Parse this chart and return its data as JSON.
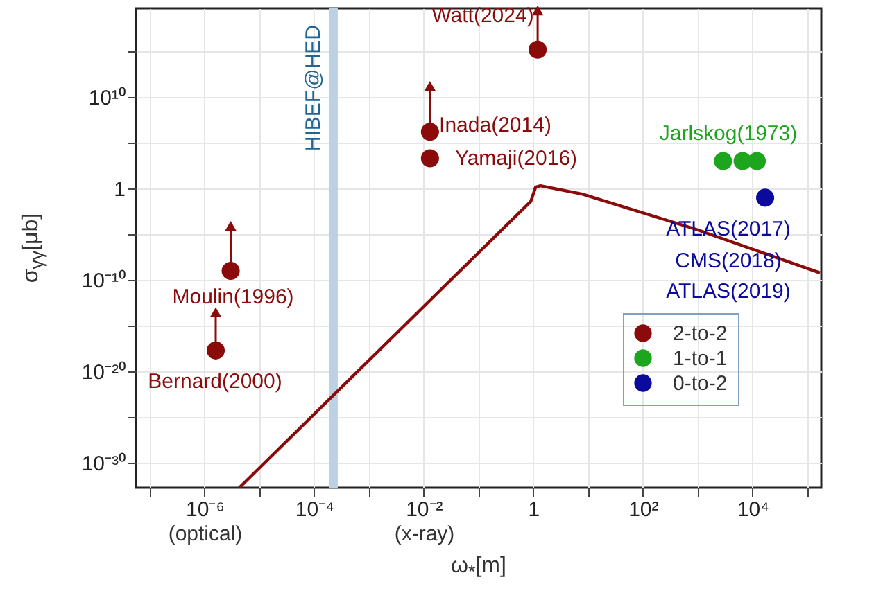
{
  "chart_data": {
    "type": "scatter",
    "xlabel": "ω$_{*}$[m]",
    "ylabel": "σ$_{γγ}$[μb]",
    "xlim": [
      5.6e-08,
      180000.0
    ],
    "ylim": [
      2e-33,
      5e+19
    ],
    "xticks": [
      {
        "value": 1e-07,
        "label": null
      },
      {
        "value": 1e-06,
        "label": "10⁻⁶"
      },
      {
        "value": 1e-05,
        "label": null
      },
      {
        "value": 0.0001,
        "label": "10⁻⁴"
      },
      {
        "value": 0.001,
        "label": null
      },
      {
        "value": 0.01,
        "label": "10⁻²"
      },
      {
        "value": 0.1,
        "label": null
      },
      {
        "value": 1,
        "label": "1"
      },
      {
        "value": 10,
        "label": null
      },
      {
        "value": 100,
        "label": "10²"
      },
      {
        "value": 1000,
        "label": null
      },
      {
        "value": 10000,
        "label": "10⁴"
      },
      {
        "value": 100000,
        "label": null
      }
    ],
    "yticks": [
      {
        "value": 1e-30,
        "label": "10⁻³⁰"
      },
      {
        "value": 1e-25,
        "label": null
      },
      {
        "value": 1e-20,
        "label": "10⁻²⁰"
      },
      {
        "value": 1e-15,
        "label": null
      },
      {
        "value": 1e-10,
        "label": "10⁻¹⁰"
      },
      {
        "value": 1e-05,
        "label": null
      },
      {
        "value": 1,
        "label": "1"
      },
      {
        "value": 100000.0,
        "label": null
      },
      {
        "value": 10000000000.0,
        "label": "10¹⁰"
      },
      {
        "value": 1000000000000000.0,
        "label": null
      }
    ],
    "log": "xy",
    "grid": true,
    "legend": "bottom right",
    "series": [
      {
        "name": "2-to-2",
        "color": "#8b0a0a",
        "marker": "circle",
        "x": [
          3e-06,
          1.6e-06,
          0.013,
          0.013,
          1.2
        ],
        "values": [
          1e-09,
          2e-18,
          1600000.0,
          2000.0,
          1500000000000000.0
        ],
        "errors": [
          [
            1e-09,
            8e-05
          ],
          [
            2e-18,
            3e-14
          ],
          [
            1600000.0,
            160000000000.0
          ],
          null,
          [
            1500000000000000.0,
            3e+19
          ]
        ]
      },
      {
        "name": "1-to-1",
        "color": "#1ea51e",
        "marker": "circle",
        "x": [
          2900,
          6600,
          12000
        ],
        "values": [
          1000,
          1000,
          1000
        ]
      },
      {
        "name": "0-to-2",
        "color": "#0a0a9c",
        "marker": "circle",
        "x": [
          17000
        ],
        "values": [
          0.1
        ]
      },
      {
        "type": "line",
        "color": "#8b0a0a",
        "x": [
          4.3e-06,
          0.9,
          1.1,
          1.35,
          7.8,
          870,
          170000.0
        ],
        "values": [
          2e-33,
          0.04,
          1.4,
          2,
          0.25,
          4e-05,
          6e-10
        ]
      }
    ],
    "bands": [
      {
        "axis": "x",
        "from": 0.00019,
        "to": 0.00027,
        "label": "HIBEF@HED",
        "color": "#bcd2e4"
      }
    ],
    "annotations": [
      "Moulin(1996)",
      "Bernard(2000)",
      "Watt(2024)",
      "Inada(2014)",
      "Yamaji(2016)",
      "Jarlskog(1973)",
      "ATLAS(2017)",
      "CMS(2018)",
      "ATLAS(2019)",
      "(optical)",
      "(x-ray)"
    ]
  }
}
